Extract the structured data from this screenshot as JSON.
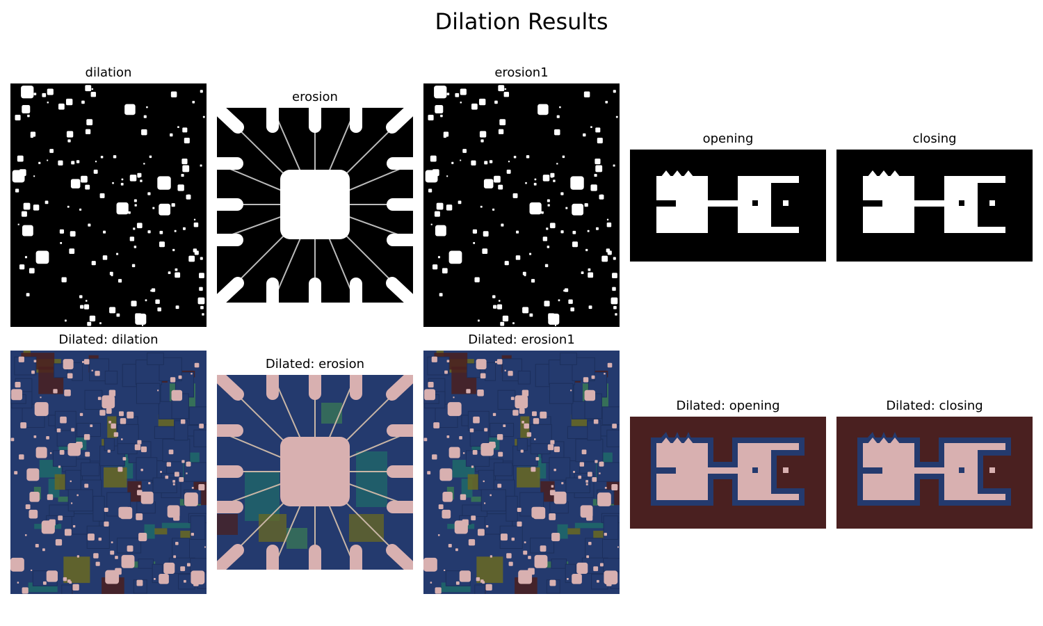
{
  "figure": {
    "title": "Dilation Results",
    "panels": [
      {
        "key": "p1",
        "title": "dilation"
      },
      {
        "key": "p2",
        "title": "erosion"
      },
      {
        "key": "p3",
        "title": "erosion1"
      },
      {
        "key": "p4",
        "title": "opening"
      },
      {
        "key": "p5",
        "title": "closing"
      },
      {
        "key": "p6",
        "title": "Dilated: dilation"
      },
      {
        "key": "p7",
        "title": "Dilated: erosion"
      },
      {
        "key": "p8",
        "title": "Dilated: erosion1"
      },
      {
        "key": "p9",
        "title": "Dilated: opening"
      },
      {
        "key": "p10",
        "title": "Dilated: closing"
      }
    ]
  },
  "colors": {
    "binary_fg": "#ffffff",
    "binary_bg": "#000000",
    "dilated_fg": "#d8b0b0",
    "dilated_region": "#243a6e",
    "dilated_bg": "#4a2020",
    "dilated_teal": "#1f6a6a",
    "dilated_olive": "#6a6a22",
    "dilated_green": "#3a7a55"
  }
}
